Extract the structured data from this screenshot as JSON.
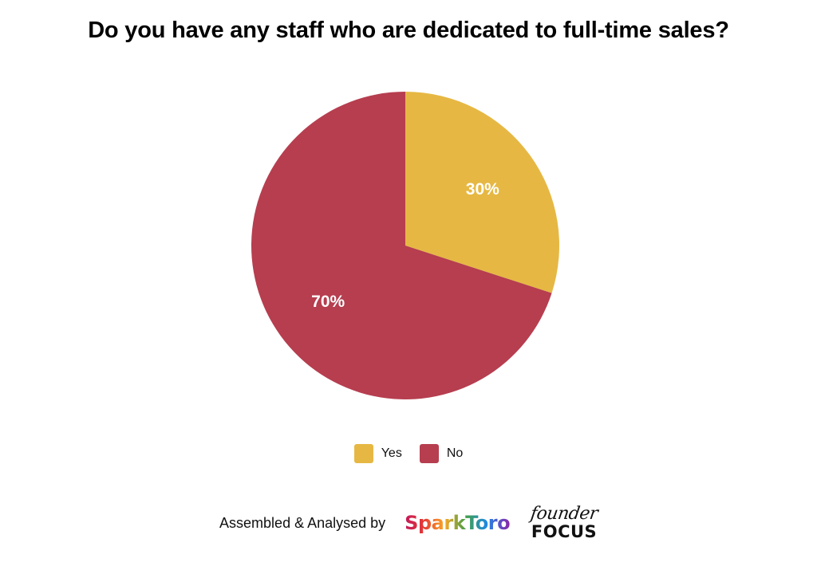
{
  "chart_data": {
    "type": "pie",
    "title": "Do you have any staff who are dedicated to full-time sales?",
    "categories": [
      "Yes",
      "No"
    ],
    "values": [
      30,
      70
    ],
    "labels": [
      "30%",
      "70%"
    ],
    "colors": [
      "#E6B843",
      "#B63E4F"
    ],
    "legend": {
      "position": "bottom",
      "items": [
        {
          "label": "Yes",
          "color": "#E6B843"
        },
        {
          "label": "No",
          "color": "#B63E4F"
        }
      ]
    }
  },
  "footer": {
    "text": "Assembled & Analysed by",
    "logos": {
      "sparktoro": "SparkToro",
      "founder_focus_top": "founder",
      "founder_focus_bottom": "FOCUS"
    }
  }
}
